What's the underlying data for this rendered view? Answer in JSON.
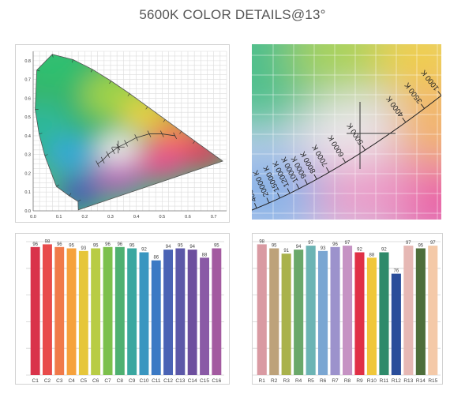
{
  "title": "5600K COLOR DETAILS@13°",
  "chart_data": [
    {
      "name": "cie",
      "type": "scatter",
      "xticks": [
        "0.0",
        "0.1",
        "0.2",
        "0.3",
        "0.4",
        "0.5",
        "0.6",
        "0.7"
      ],
      "yticks": [
        "0.0",
        "0.1",
        "0.2",
        "0.3",
        "0.4",
        "0.5",
        "0.6",
        "0.7",
        "0.8"
      ],
      "xlim": [
        0,
        0.75
      ],
      "ylim": [
        0,
        0.85
      ],
      "grid": true,
      "point": {
        "x": 0.33,
        "y": 0.34
      }
    },
    {
      "name": "cct-zoom",
      "type": "line",
      "cct_labels": [
        "1000 K",
        "3500 K",
        "4000 K",
        "5000 K",
        "6000 K",
        "7000 K",
        "8000 K",
        "9000 K",
        "10000 K",
        "12000 K",
        "15000 K",
        "20000 K",
        "40000 K"
      ],
      "crosshair": true,
      "grid": true
    },
    {
      "name": "c-scores",
      "type": "bar",
      "categories": [
        "C1",
        "C2",
        "C3",
        "C4",
        "C5",
        "C6",
        "C7",
        "C8",
        "C9",
        "C10",
        "C11",
        "C12",
        "C13",
        "C14",
        "C15",
        "C16"
      ],
      "values": [
        96,
        98,
        96,
        95,
        93,
        95,
        96,
        96,
        95,
        92,
        86,
        94,
        95,
        94,
        88,
        95
      ],
      "colors": [
        "#d9334a",
        "#e84b4b",
        "#f07a4a",
        "#f6a23c",
        "#e6c63a",
        "#b8cc44",
        "#7cc04c",
        "#4fb071",
        "#3aa7a0",
        "#3996c0",
        "#3b79c4",
        "#4a63b5",
        "#5c58a8",
        "#6d4f9e",
        "#8a5aa6",
        "#a35aa0"
      ]
    },
    {
      "name": "r-scores",
      "type": "bar",
      "categories": [
        "R1",
        "R2",
        "R3",
        "R4",
        "R5",
        "R6",
        "R7",
        "R8",
        "R9",
        "R10",
        "R11",
        "R12",
        "R13",
        "R14",
        "R15"
      ],
      "values": [
        98,
        95,
        91,
        94,
        97,
        93,
        96,
        97,
        92,
        88,
        92,
        76,
        97,
        95,
        97
      ],
      "colors": [
        "#d99aa2",
        "#bda27a",
        "#a9b24c",
        "#6aa86a",
        "#6cb4b4",
        "#7aa6d2",
        "#9c92cc",
        "#c693c4",
        "#e03046",
        "#f0c73a",
        "#2e8a6a",
        "#2a4d9a",
        "#e6b8b4",
        "#4e6e3a",
        "#f4c9a8"
      ]
    }
  ]
}
